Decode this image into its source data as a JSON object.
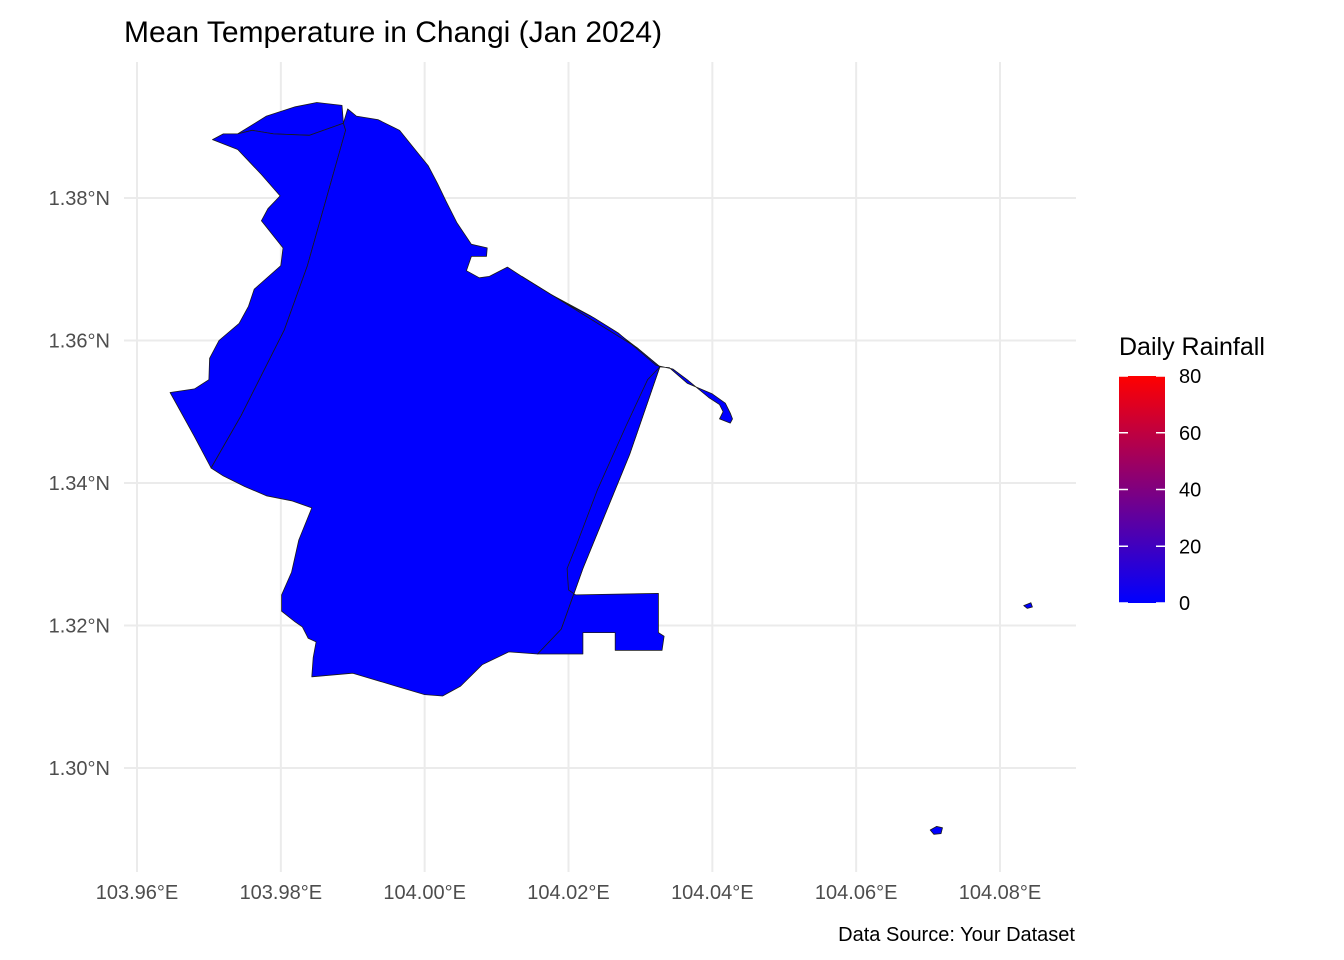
{
  "title": "Mean Temperature in Changi (Jan 2024)",
  "caption": "Data Source: Your Dataset",
  "colors": {
    "fill_low": "#0000ff",
    "fill_high": "#ff0000",
    "grid": "#ebebeb",
    "border": "#1a1a1a"
  },
  "chart_data": {
    "type": "choropleth",
    "x_axis": {
      "range": [
        103.96,
        104.09
      ],
      "ticks": [
        103.96,
        103.98,
        104.0,
        104.02,
        104.04,
        104.06,
        104.08
      ],
      "tick_labels": [
        "103.96°E",
        "103.98°E",
        "104.00°E",
        "104.02°E",
        "104.04°E",
        "104.06°E",
        "104.08°E"
      ]
    },
    "y_axis": {
      "range": [
        1.29,
        1.39
      ],
      "ticks": [
        1.3,
        1.32,
        1.34,
        1.36,
        1.38
      ],
      "tick_labels": [
        "1.30°N",
        "1.32°N",
        "1.34°N",
        "1.36°N",
        "1.38°N"
      ]
    },
    "grid": true,
    "legend": {
      "title": "Daily Rainfall",
      "placement": "right",
      "min": 0,
      "max": 80,
      "ticks": [
        0,
        20,
        40,
        60,
        80
      ],
      "tick_labels": [
        "0",
        "20",
        "40",
        "60",
        "80"
      ]
    },
    "regions": [
      {
        "fill_value": 0,
        "coords": [
          [
            103.974,
            1.389
          ],
          [
            103.978,
            1.3915
          ],
          [
            103.982,
            1.3928
          ],
          [
            103.985,
            1.3934
          ],
          [
            103.9885,
            1.393
          ],
          [
            103.9887,
            1.3905
          ],
          [
            103.984,
            1.3888
          ],
          [
            103.979,
            1.389
          ],
          [
            103.976,
            1.3895
          ]
        ]
      },
      {
        "fill_value": 0,
        "coords": [
          [
            103.972,
            1.389
          ],
          [
            103.974,
            1.389
          ],
          [
            103.976,
            1.3895
          ],
          [
            103.979,
            1.389
          ],
          [
            103.984,
            1.3888
          ],
          [
            103.9887,
            1.3905
          ],
          [
            103.989,
            1.3895
          ],
          [
            103.9837,
            1.3705
          ],
          [
            103.9805,
            1.3615
          ],
          [
            103.9745,
            1.3495
          ],
          [
            103.9703,
            1.3421
          ],
          [
            103.968,
            1.3465
          ],
          [
            103.9646,
            1.3527
          ],
          [
            103.968,
            1.3532
          ],
          [
            103.97,
            1.3545
          ],
          [
            103.9701,
            1.3575
          ],
          [
            103.9714,
            1.36
          ],
          [
            103.9742,
            1.3624
          ],
          [
            103.9755,
            1.3648
          ],
          [
            103.9763,
            1.3672
          ],
          [
            103.98,
            1.3705
          ],
          [
            103.9803,
            1.373
          ],
          [
            103.9773,
            1.3768
          ],
          [
            103.9782,
            1.3785
          ],
          [
            103.9799,
            1.3803
          ],
          [
            103.9773,
            1.3833
          ],
          [
            103.974,
            1.3868
          ],
          [
            103.9705,
            1.3882
          ]
        ]
      },
      {
        "fill_value": 0,
        "coords": [
          [
            103.9887,
            1.3905
          ],
          [
            103.9893,
            1.3925
          ],
          [
            103.9905,
            1.3915
          ],
          [
            103.9935,
            1.391
          ],
          [
            103.9965,
            1.3895
          ],
          [
            103.9985,
            1.387
          ],
          [
            104.0005,
            1.3845
          ],
          [
            104.0018,
            1.382
          ],
          [
            104.003,
            1.3795
          ],
          [
            104.0045,
            1.3765
          ],
          [
            104.0065,
            1.3735
          ],
          [
            104.0087,
            1.373
          ],
          [
            104.0086,
            1.3718
          ],
          [
            104.0065,
            1.3718
          ],
          [
            104.0058,
            1.3698
          ],
          [
            104.0076,
            1.3688
          ],
          [
            104.009,
            1.369
          ],
          [
            104.0115,
            1.3703
          ],
          [
            104.0135,
            1.369
          ],
          [
            104.0175,
            1.3665
          ],
          [
            104.023,
            1.3635
          ],
          [
            104.0265,
            1.3613
          ],
          [
            104.0295,
            1.359
          ],
          [
            104.0325,
            1.3565
          ],
          [
            104.0327,
            1.3563
          ],
          [
            104.0285,
            1.344
          ],
          [
            104.022,
            1.328
          ],
          [
            104.019,
            1.3195
          ],
          [
            104.0157,
            1.316
          ],
          [
            104.0117,
            1.3163
          ],
          [
            104.008,
            1.3145
          ],
          [
            104.005,
            1.3115
          ],
          [
            104.0025,
            1.3101
          ],
          [
            104.0,
            1.3103
          ],
          [
            103.996,
            1.3115
          ],
          [
            103.99,
            1.3133
          ],
          [
            103.9843,
            1.3128
          ],
          [
            103.9845,
            1.3155
          ],
          [
            103.9849,
            1.3177
          ],
          [
            103.9838,
            1.3182
          ],
          [
            103.983,
            1.3198
          ],
          [
            103.982,
            1.3205
          ],
          [
            103.9801,
            1.322
          ],
          [
            103.9801,
            1.3243
          ],
          [
            103.9815,
            1.3275
          ],
          [
            103.9825,
            1.332
          ],
          [
            103.9843,
            1.3365
          ],
          [
            103.9815,
            1.3375
          ],
          [
            103.978,
            1.3382
          ],
          [
            103.975,
            1.3395
          ],
          [
            103.972,
            1.341
          ],
          [
            103.9703,
            1.3421
          ],
          [
            103.9745,
            1.3495
          ],
          [
            103.9805,
            1.3615
          ],
          [
            103.9837,
            1.3705
          ],
          [
            103.989,
            1.3895
          ]
        ]
      },
      {
        "fill_value": 0,
        "coords": [
          [
            104.0327,
            1.3563
          ],
          [
            104.034,
            1.3562
          ],
          [
            104.0365,
            1.354
          ],
          [
            104.04,
            1.3525
          ],
          [
            104.0418,
            1.3512
          ],
          [
            104.0425,
            1.3498
          ],
          [
            104.0428,
            1.349
          ],
          [
            104.0425,
            1.3484
          ],
          [
            104.041,
            1.349
          ],
          [
            104.0415,
            1.35
          ],
          [
            104.041,
            1.351
          ],
          [
            104.0395,
            1.352
          ],
          [
            104.0365,
            1.3545
          ],
          [
            104.0345,
            1.356
          ],
          [
            104.0322,
            1.3565
          ],
          [
            104.027,
            1.361
          ],
          [
            104.0235,
            1.3632
          ],
          [
            104.02,
            1.365
          ],
          [
            104.0175,
            1.3665
          ],
          [
            104.0135,
            1.369
          ],
          [
            104.0295,
            1.359
          ],
          [
            104.0327,
            1.3563
          ],
          [
            104.0285,
            1.344
          ],
          [
            104.022,
            1.328
          ],
          [
            104.019,
            1.3195
          ],
          [
            104.0157,
            1.316
          ],
          [
            104.0205,
            1.316
          ],
          [
            104.022,
            1.316
          ],
          [
            104.022,
            1.319
          ],
          [
            104.0265,
            1.319
          ],
          [
            104.0265,
            1.3165
          ],
          [
            104.033,
            1.3165
          ],
          [
            104.0333,
            1.3185
          ],
          [
            104.0325,
            1.319
          ],
          [
            104.0325,
            1.3245
          ],
          [
            104.021,
            1.3243
          ],
          [
            104.02,
            1.325
          ],
          [
            104.0198,
            1.328
          ],
          [
            104.021,
            1.331
          ],
          [
            104.024,
            1.339
          ],
          [
            104.028,
            1.348
          ],
          [
            104.031,
            1.3545
          ],
          [
            104.0327,
            1.3563
          ]
        ]
      },
      {
        "fill_value": 0,
        "coords": [
          [
            104.0833,
            1.3228
          ],
          [
            104.0843,
            1.3232
          ],
          [
            104.0845,
            1.3226
          ],
          [
            104.0838,
            1.3224
          ]
        ]
      },
      {
        "fill_value": 0,
        "coords": [
          [
            104.0703,
            1.2913
          ],
          [
            104.0712,
            1.2918
          ],
          [
            104.072,
            1.2916
          ],
          [
            104.0718,
            1.2908
          ],
          [
            104.0708,
            1.2907
          ]
        ]
      }
    ]
  }
}
